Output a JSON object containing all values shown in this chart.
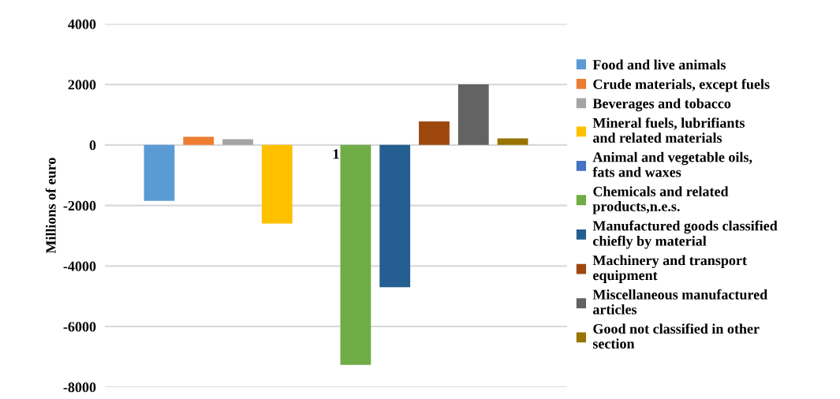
{
  "chart_data": {
    "type": "bar",
    "ylabel": "Millions of euro",
    "categories": [
      "1"
    ],
    "series": [
      {
        "name": "Food and live animals",
        "color": "#5b9bd5",
        "values": [
          -1850
        ]
      },
      {
        "name": "Crude materials, except fuels",
        "color": "#ed7d31",
        "values": [
          270
        ]
      },
      {
        "name": "Beverages and tobacco",
        "color": "#a5a5a5",
        "values": [
          190
        ]
      },
      {
        "name": "Mineral fuels, lubrifiants and related materials",
        "color": "#ffc000",
        "values": [
          -2600
        ]
      },
      {
        "name": "Animal and vegetable oils, fats and waxes",
        "color": "#4472c4",
        "values": [
          0
        ]
      },
      {
        "name": "Chemicals and related products,n.e.s.",
        "color": "#70ad47",
        "values": [
          -7270
        ]
      },
      {
        "name": "Manufactured goods classified chiefly by material",
        "color": "#255e91",
        "values": [
          -4700
        ]
      },
      {
        "name": "Machinery and transport equipment",
        "color": "#9e480e",
        "values": [
          780
        ]
      },
      {
        "name": "Miscellaneous manufactured articles",
        "color": "#636363",
        "values": [
          2000
        ]
      },
      {
        "name": "Good not classified in other section",
        "color": "#997300",
        "values": [
          220
        ]
      }
    ],
    "ylim": [
      -8000,
      4000
    ],
    "yticks": [
      -8000,
      -6000,
      -4000,
      -2000,
      0,
      2000,
      4000
    ],
    "grid": "y",
    "legend": "right"
  }
}
